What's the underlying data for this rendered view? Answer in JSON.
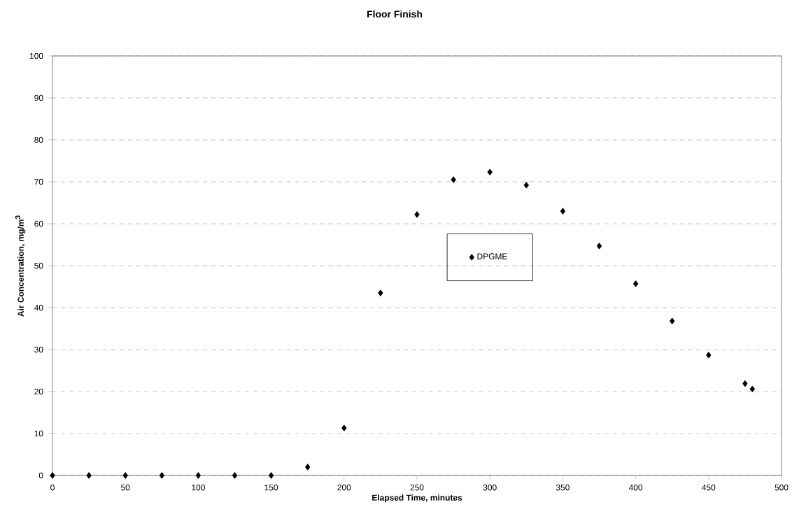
{
  "chart_data": {
    "type": "scatter",
    "title": "Floor Finish",
    "xlabel": "Elapsed Time, minutes",
    "ylabel": "Air Concentration, mg/m$^{3}$",
    "x": [
      0,
      25,
      50,
      75,
      100,
      125,
      150,
      175,
      200,
      225,
      250,
      275,
      300,
      325,
      350,
      375,
      400,
      425,
      450,
      475,
      480
    ],
    "series": [
      {
        "name": "DPGME",
        "color": "#000000",
        "values": [
          0,
          0,
          0,
          0,
          0,
          0,
          0,
          2.0,
          11.3,
          43.5,
          62.2,
          70.5,
          72.3,
          69.2,
          63.0,
          54.7,
          45.7,
          36.8,
          28.7,
          21.9,
          20.6
        ]
      }
    ],
    "xlim": [
      0,
      500
    ],
    "xticks": [
      0,
      50,
      100,
      150,
      200,
      250,
      300,
      350,
      400,
      450,
      500
    ],
    "ylim": [
      0,
      100
    ],
    "yticks": [
      0,
      10,
      20,
      30,
      40,
      50,
      60,
      70,
      80,
      90,
      100
    ],
    "grid": "y",
    "legend": "center",
    "marker": "diamond"
  }
}
